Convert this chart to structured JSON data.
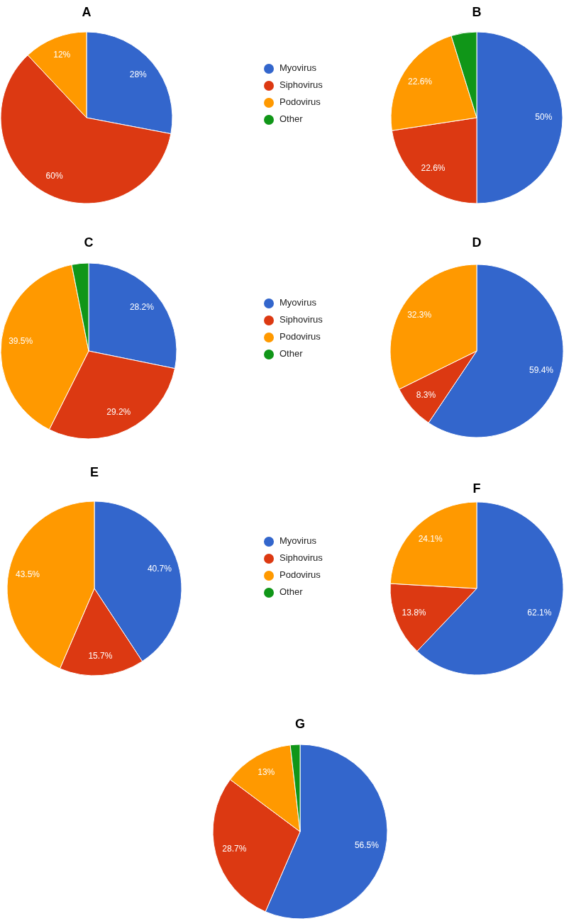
{
  "chart_data": [
    {
      "type": "pie",
      "title": "A",
      "categories": [
        "Myovirus",
        "Siphovirus",
        "Podovirus",
        "Other"
      ],
      "values": [
        28,
        60,
        12,
        0
      ],
      "value_labels": [
        "28%",
        "60%",
        "12%",
        null
      ],
      "colors": [
        "#3366cc",
        "#dc3912",
        "#ff9900",
        "#109618"
      ],
      "legend": "right"
    },
    {
      "type": "pie",
      "title": "B",
      "categories": [
        null,
        null,
        null,
        null
      ],
      "values": [
        50,
        22.6,
        22.6,
        4.8
      ],
      "value_labels": [
        "50%",
        "22.6%",
        "22.6%",
        null
      ],
      "colors": [
        "#3366cc",
        "#dc3912",
        "#ff9900",
        "#109618"
      ]
    },
    {
      "type": "pie",
      "title": "C",
      "categories": [
        "Myovirus",
        "Siphovirus",
        "Podovirus",
        "Other"
      ],
      "values": [
        28.2,
        29.2,
        39.5,
        3.1
      ],
      "value_labels": [
        "28.2%",
        "29.2%",
        "39.5%",
        null
      ],
      "colors": [
        "#3366cc",
        "#dc3912",
        "#ff9900",
        "#109618"
      ],
      "legend": "right"
    },
    {
      "type": "pie",
      "title": "D",
      "categories": [
        null,
        null,
        null
      ],
      "values": [
        59.4,
        8.3,
        32.3
      ],
      "value_labels": [
        "59.4%",
        "8.3%",
        "32.3%"
      ],
      "colors": [
        "#3366cc",
        "#dc3912",
        "#ff9900"
      ]
    },
    {
      "type": "pie",
      "title": "E",
      "categories": [
        "Myovirus",
        "Siphovirus",
        "Podovirus",
        "Other"
      ],
      "values": [
        40.7,
        15.7,
        43.5,
        0
      ],
      "value_labels": [
        "40.7%",
        "15.7%",
        "43.5%",
        null
      ],
      "colors": [
        "#3366cc",
        "#dc3912",
        "#ff9900",
        "#109618"
      ],
      "legend": "right"
    },
    {
      "type": "pie",
      "title": "F",
      "categories": [
        null,
        null,
        null
      ],
      "values": [
        62.1,
        13.8,
        24.1
      ],
      "value_labels": [
        "62.1%",
        "13.8%",
        "24.1%"
      ],
      "colors": [
        "#3366cc",
        "#dc3912",
        "#ff9900"
      ]
    },
    {
      "type": "pie",
      "title": "G",
      "categories": [
        null,
        null,
        null,
        null
      ],
      "values": [
        56.5,
        28.7,
        13,
        1.8
      ],
      "value_labels": [
        "56.5%",
        "28.7%",
        "13%",
        null
      ],
      "colors": [
        "#3366cc",
        "#dc3912",
        "#ff9900",
        "#109618"
      ]
    }
  ]
}
